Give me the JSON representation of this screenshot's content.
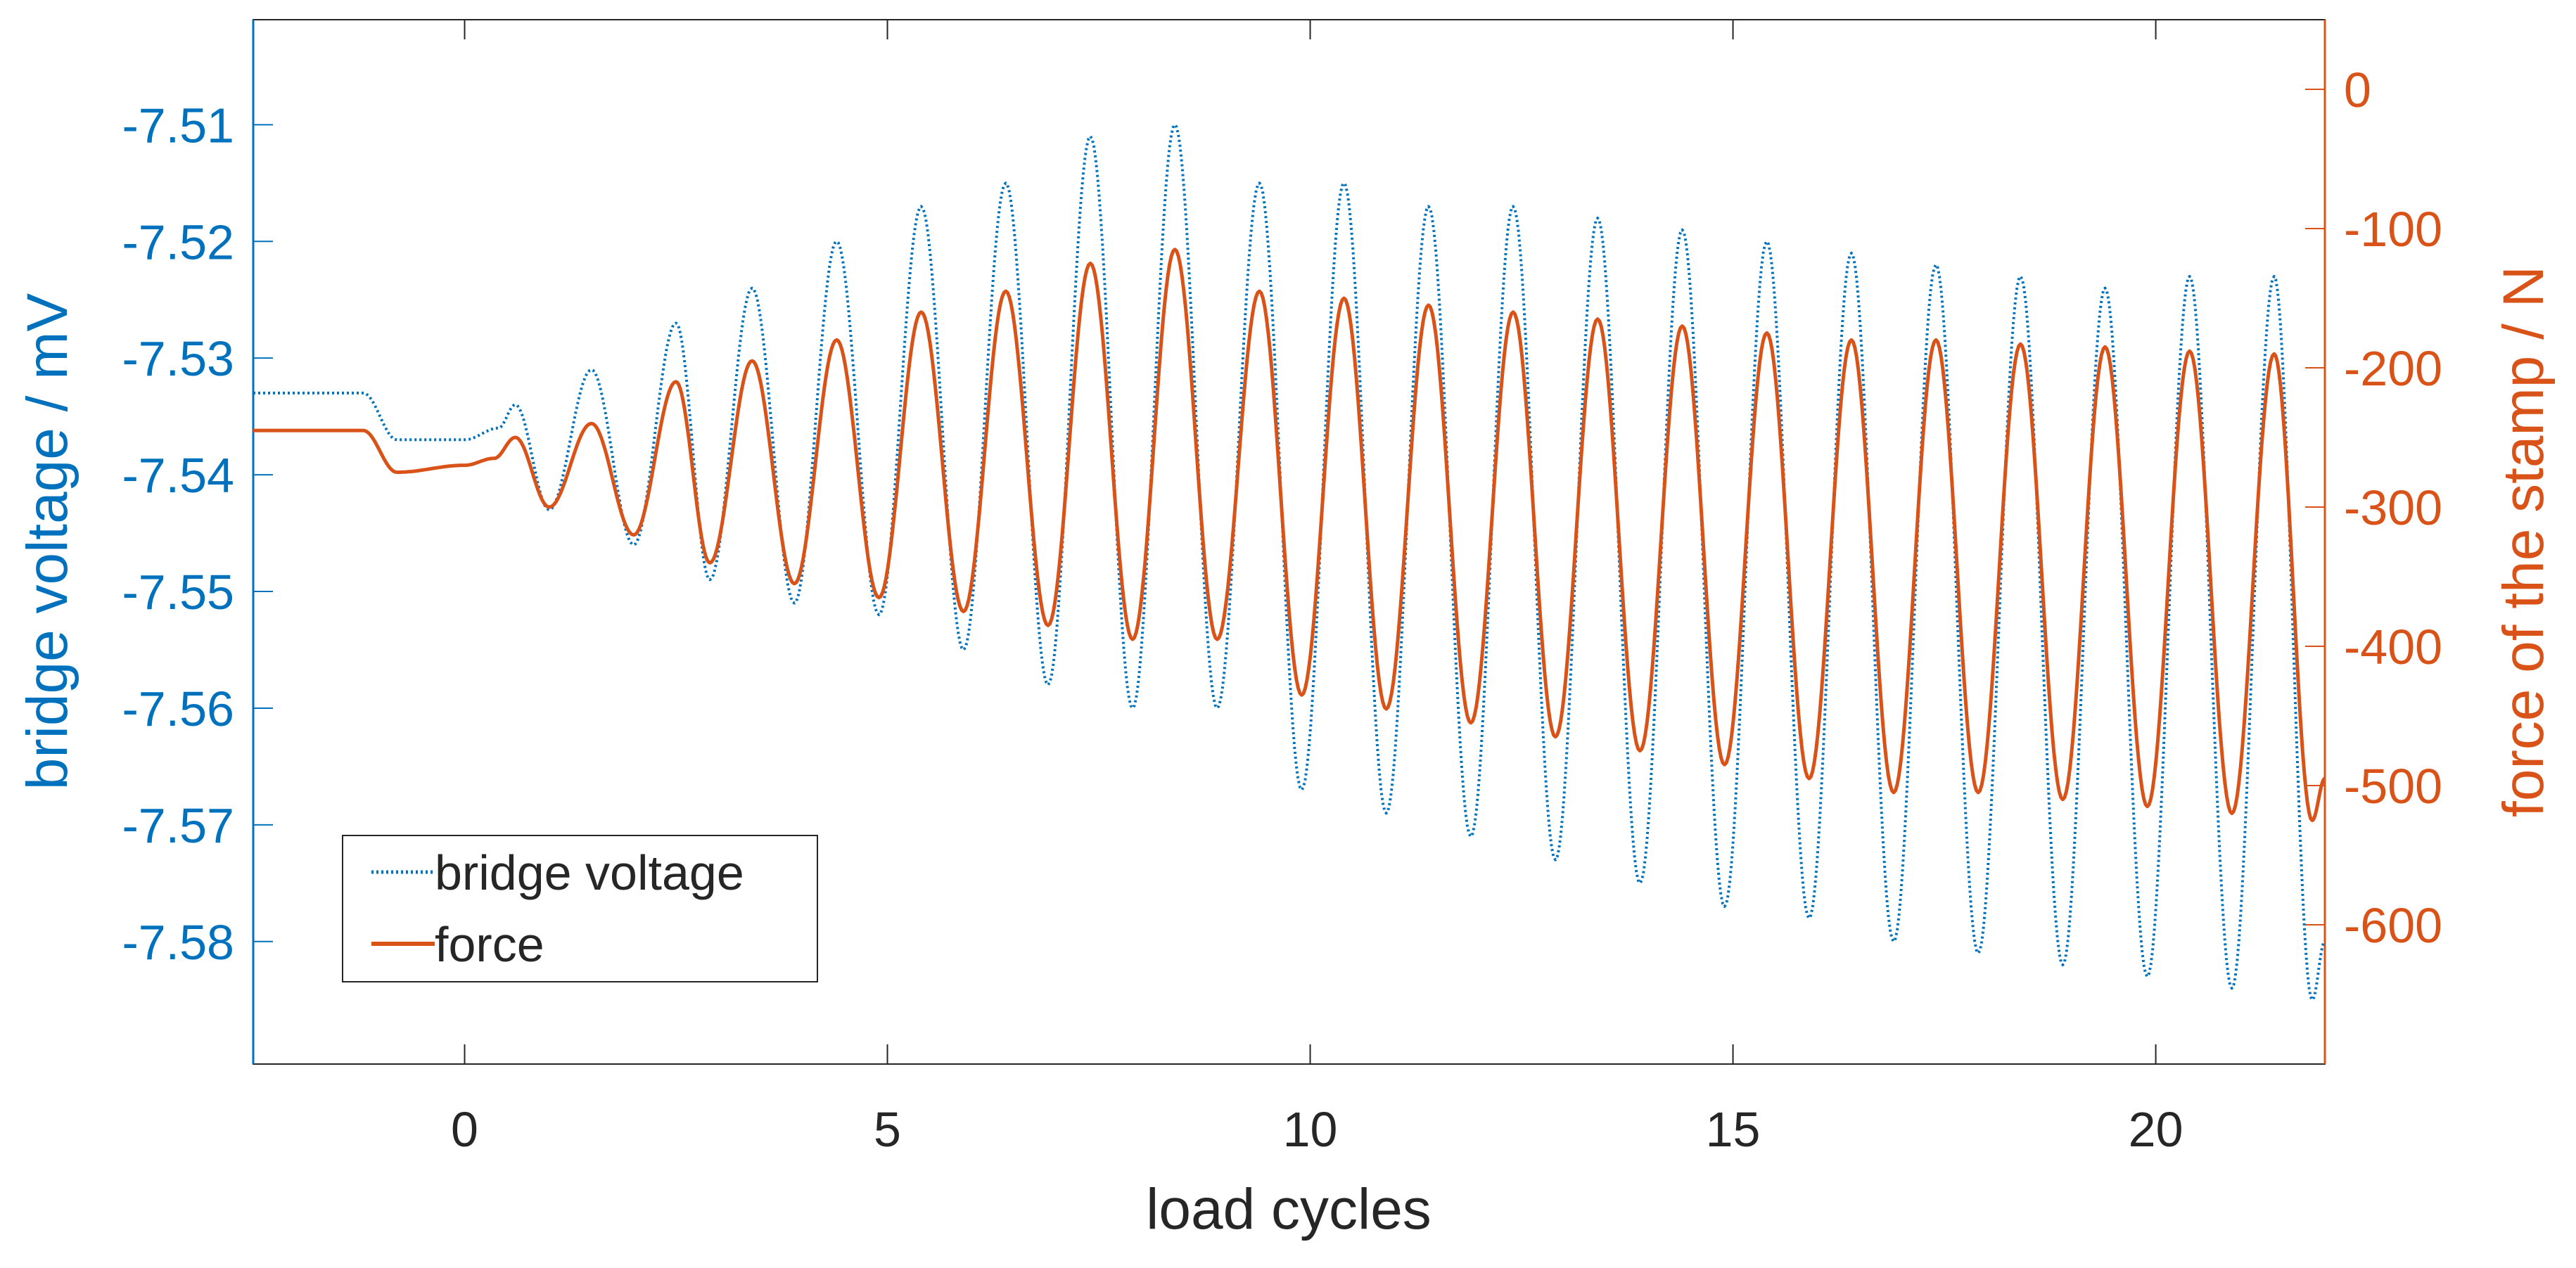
{
  "colors": {
    "left_axis": "#0072BD",
    "right_axis": "#D95319",
    "axes": "#262626",
    "background": "#ffffff"
  },
  "chart_data": {
    "type": "line",
    "xlabel": "load cycles",
    "ylabel_left": "bridge voltage / mV",
    "ylabel_right": "force of the stamp / N",
    "xlim": [
      -2.5,
      22
    ],
    "ylim_left": [
      -7.5905,
      -7.501
    ],
    "ylim_right": [
      -700,
      50
    ],
    "x_ticks": [
      0,
      5,
      10,
      15,
      20
    ],
    "x_tick_labels": [
      "0",
      "5",
      "10",
      "15",
      "20"
    ],
    "y_left_ticks": [
      -7.51,
      -7.52,
      -7.53,
      -7.54,
      -7.55,
      -7.56,
      -7.57,
      -7.58
    ],
    "y_left_tick_labels": [
      "-7.51",
      "-7.52",
      "-7.53",
      "-7.54",
      "-7.55",
      "-7.56",
      "-7.57",
      "-7.58"
    ],
    "y_right_ticks": [
      0,
      -100,
      -200,
      -300,
      -400,
      -500,
      -600
    ],
    "y_right_tick_labels": [
      "0",
      "-100",
      "-200",
      "-300",
      "-400",
      "-500",
      "-600"
    ],
    "legend": {
      "position": "bottom-left",
      "entries": [
        {
          "label": "bridge voltage",
          "style": "dotted",
          "color": "#0072BD"
        },
        {
          "label": "force",
          "style": "solid",
          "color": "#D95319"
        }
      ]
    },
    "series": [
      {
        "name": "bridge voltage",
        "axis": "left",
        "unit": "mV",
        "style": "dotted",
        "color": "#0072BD",
        "description": "baseline about -7.533 mV before cycling, small step near -1, then oscillation with growing amplitude",
        "x": [
          -2.5,
          -1.2,
          -0.8,
          0.0,
          0.4,
          0.6,
          1.0,
          1.5,
          2.0,
          2.5,
          2.9,
          3.4,
          3.9,
          4.4,
          4.9,
          5.4,
          5.9,
          6.4,
          6.9,
          7.4,
          7.9,
          8.4,
          8.9,
          9.4,
          9.9,
          10.4,
          10.9,
          11.4,
          11.9,
          12.4,
          12.9,
          13.4,
          13.9,
          14.4,
          14.9,
          15.4,
          15.9,
          16.4,
          16.9,
          17.4,
          17.9,
          18.4,
          18.9,
          19.4,
          19.9,
          20.4,
          20.9,
          21.4,
          21.85,
          22.0
        ],
        "y": [
          -7.533,
          -7.533,
          -7.537,
          -7.537,
          -7.536,
          -7.534,
          -7.543,
          -7.531,
          -7.546,
          -7.527,
          -7.549,
          -7.524,
          -7.551,
          -7.52,
          -7.552,
          -7.517,
          -7.555,
          -7.515,
          -7.558,
          -7.511,
          -7.56,
          -7.51,
          -7.56,
          -7.515,
          -7.567,
          -7.515,
          -7.569,
          -7.517,
          -7.571,
          -7.517,
          -7.573,
          -7.518,
          -7.575,
          -7.519,
          -7.577,
          -7.52,
          -7.578,
          -7.521,
          -7.58,
          -7.522,
          -7.581,
          -7.523,
          -7.582,
          -7.524,
          -7.583,
          -7.523,
          -7.584,
          -7.523,
          -7.585,
          -7.58
        ]
      },
      {
        "name": "force",
        "axis": "right",
        "unit": "N",
        "style": "solid",
        "color": "#D95319",
        "description": "about -245 N before cycling, step to about -275 N near -1, then sinusoidal loading with growing amplitude",
        "x": [
          -2.5,
          -1.2,
          -0.8,
          0.0,
          0.35,
          0.6,
          1.0,
          1.5,
          2.0,
          2.5,
          2.9,
          3.4,
          3.9,
          4.4,
          4.9,
          5.4,
          5.9,
          6.4,
          6.9,
          7.4,
          7.9,
          8.4,
          8.9,
          9.4,
          9.9,
          10.4,
          10.9,
          11.4,
          11.9,
          12.4,
          12.9,
          13.4,
          13.9,
          14.4,
          14.9,
          15.4,
          15.9,
          16.4,
          16.9,
          17.4,
          17.9,
          18.4,
          18.9,
          19.4,
          19.9,
          20.4,
          20.9,
          21.4,
          21.85,
          22.0
        ],
        "y": [
          -245,
          -245,
          -275,
          -270,
          -265,
          -250,
          -300,
          -240,
          -320,
          -210,
          -340,
          -195,
          -355,
          -180,
          -365,
          -160,
          -375,
          -145,
          -385,
          -125,
          -395,
          -115,
          -395,
          -145,
          -435,
          -150,
          -445,
          -155,
          -455,
          -160,
          -465,
          -165,
          -475,
          -170,
          -485,
          -175,
          -495,
          -180,
          -505,
          -180,
          -505,
          -183,
          -510,
          -185,
          -515,
          -188,
          -520,
          -190,
          -525,
          -495
        ]
      }
    ]
  }
}
